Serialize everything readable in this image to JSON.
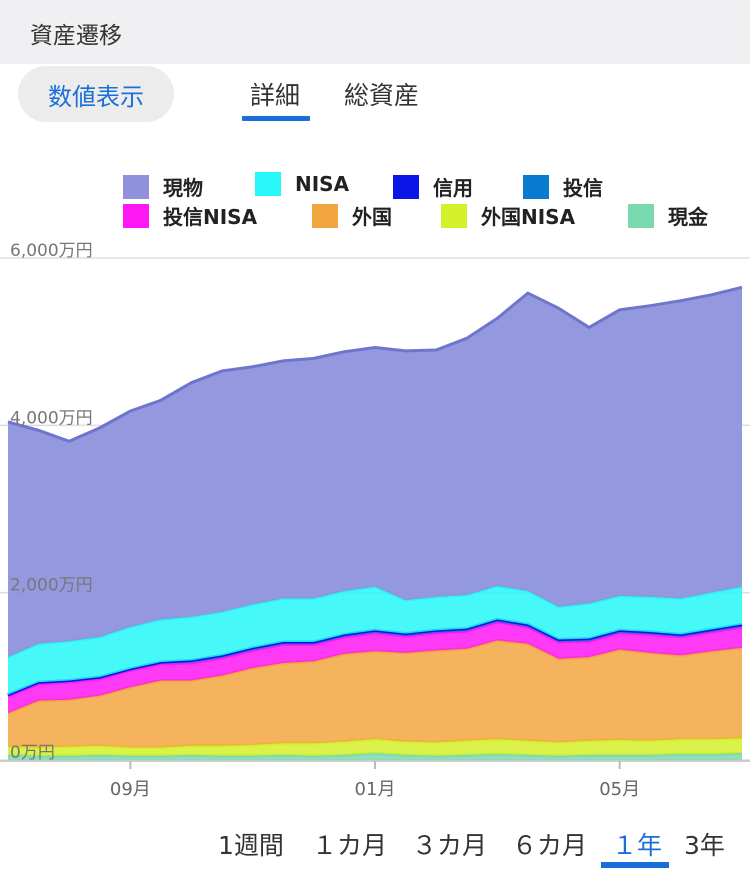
{
  "header": {
    "title": "資産遷移"
  },
  "toggle": {
    "label": "数値表示"
  },
  "tabs": [
    {
      "label": "詳細",
      "active": true
    },
    {
      "label": "総資産",
      "active": false
    }
  ],
  "ranges": [
    {
      "label": "1週間",
      "active": false
    },
    {
      "label": "１カ月",
      "active": false
    },
    {
      "label": "３カ月",
      "active": false
    },
    {
      "label": "６カ月",
      "active": false
    },
    {
      "label": "１年",
      "active": true
    },
    {
      "label": "3年",
      "active": false
    }
  ],
  "colors": {
    "accent": "#1a6ed8"
  },
  "chart_data": {
    "type": "area",
    "stacked": true,
    "ylim": [
      0,
      6000
    ],
    "y_ticks": [
      "0万円",
      "2,000万円",
      "4,000万円",
      "6,000万円"
    ],
    "y_tick_values": [
      0,
      2000,
      4000,
      6000
    ],
    "x_ticks": [
      "09月",
      "01月",
      "05月"
    ],
    "x_tick_positions": [
      4,
      12,
      20
    ],
    "grid": true,
    "legend_position": "top",
    "series": [
      {
        "name": "現金",
        "color": "#7ad9ae",
        "values": [
          60,
          50,
          50,
          60,
          50,
          50,
          60,
          50,
          50,
          60,
          50,
          60,
          80,
          60,
          50,
          60,
          70,
          60,
          50,
          60,
          60,
          60,
          70,
          70,
          80
        ]
      },
      {
        "name": "外国NISA",
        "color": "#d4f02a",
        "values": [
          100,
          100,
          110,
          110,
          100,
          100,
          110,
          120,
          130,
          140,
          150,
          160,
          170,
          160,
          160,
          170,
          180,
          170,
          160,
          170,
          180,
          170,
          180,
          180,
          180
        ]
      },
      {
        "name": "外国",
        "color": "#f2a640",
        "values": [
          400,
          560,
          560,
          600,
          720,
          800,
          780,
          840,
          920,
          960,
          980,
          1050,
          1050,
          1060,
          1100,
          1100,
          1180,
          1160,
          1000,
          1000,
          1080,
          1050,
          1000,
          1050,
          1080
        ]
      },
      {
        "name": "投信NISA",
        "color": "#ff17f5",
        "values": [
          200,
          200,
          210,
          200,
          200,
          200,
          210,
          210,
          210,
          220,
          200,
          200,
          220,
          200,
          210,
          210,
          220,
          200,
          200,
          190,
          200,
          220,
          220,
          230,
          250
        ]
      },
      {
        "name": "投信",
        "color": "#0a7ad0",
        "values": [
          20,
          20,
          20,
          20,
          20,
          20,
          30,
          30,
          30,
          30,
          30,
          30,
          30,
          30,
          30,
          30,
          30,
          30,
          30,
          30,
          30,
          30,
          30,
          30,
          30
        ]
      },
      {
        "name": "信用",
        "color": "#0a16e8",
        "values": [
          0,
          0,
          0,
          0,
          0,
          0,
          0,
          0,
          0,
          0,
          0,
          0,
          0,
          0,
          0,
          0,
          0,
          0,
          0,
          0,
          0,
          0,
          0,
          0,
          0
        ]
      },
      {
        "name": "NISA",
        "color": "#27f7f7",
        "values": [
          450,
          460,
          470,
          480,
          500,
          510,
          520,
          520,
          520,
          520,
          520,
          520,
          520,
          400,
          400,
          400,
          400,
          400,
          390,
          420,
          410,
          420,
          430,
          440,
          450
        ]
      },
      {
        "name": "現物",
        "color": "#8e92dc",
        "values": [
          2810,
          2550,
          2390,
          2500,
          2580,
          2620,
          2800,
          2880,
          2840,
          2840,
          2870,
          2860,
          2860,
          2980,
          2950,
          3070,
          3200,
          3560,
          3570,
          3300,
          3420,
          3480,
          3560,
          3560,
          3580
        ]
      }
    ]
  }
}
